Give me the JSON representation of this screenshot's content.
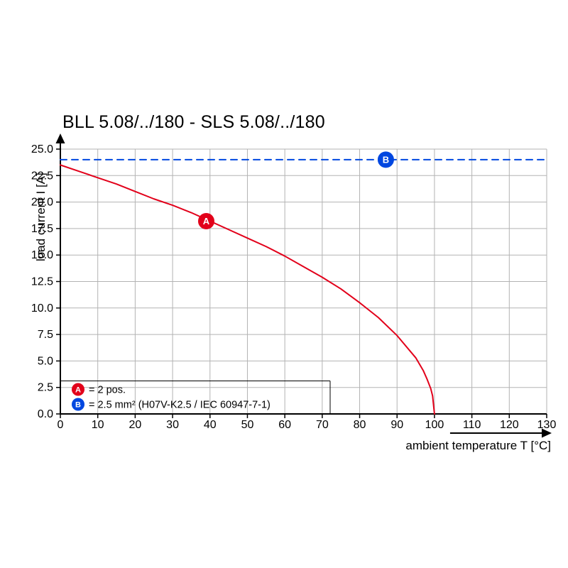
{
  "chart_data": {
    "type": "line",
    "title": "BLL 5.08/../180 - SLS 5.08/../180",
    "xlabel": "ambient temperature T [°C]",
    "ylabel": "load current I [A]",
    "xlim": [
      0,
      130
    ],
    "ylim": [
      0,
      25
    ],
    "grid": true,
    "x_ticks": [
      0,
      10,
      20,
      30,
      40,
      50,
      60,
      70,
      80,
      90,
      100,
      110,
      120,
      130
    ],
    "x_tick_labels": [
      "0",
      "10",
      "20",
      "30",
      "40",
      "50",
      "60",
      "70",
      "80",
      "90",
      "100",
      "110",
      "120",
      "130"
    ],
    "y_ticks": [
      0,
      2.5,
      5,
      7.5,
      10,
      12.5,
      15,
      17.5,
      20,
      22.5,
      25
    ],
    "y_tick_labels": [
      "0.0",
      "2.5",
      "5.0",
      "7.5",
      "10.0",
      "12.5",
      "15.0",
      "17.5",
      "20.0",
      "22.5",
      "25.0"
    ],
    "series": [
      {
        "name": "A",
        "color": "#e2001a",
        "style": "solid",
        "points": [
          [
            0,
            23.5
          ],
          [
            5,
            22.9
          ],
          [
            10,
            22.3
          ],
          [
            15,
            21.7
          ],
          [
            20,
            21.0
          ],
          [
            25,
            20.3
          ],
          [
            30,
            19.7
          ],
          [
            35,
            19.0
          ],
          [
            40,
            18.2
          ],
          [
            45,
            17.4
          ],
          [
            50,
            16.6
          ],
          [
            55,
            15.8
          ],
          [
            60,
            14.9
          ],
          [
            65,
            13.9
          ],
          [
            70,
            12.9
          ],
          [
            75,
            11.8
          ],
          [
            80,
            10.5
          ],
          [
            85,
            9.1
          ],
          [
            90,
            7.4
          ],
          [
            95,
            5.3
          ],
          [
            97,
            4.1
          ],
          [
            98,
            3.3
          ],
          [
            99,
            2.4
          ],
          [
            99.5,
            1.7
          ],
          [
            100,
            0
          ]
        ],
        "marker": {
          "x": 39,
          "y": 18.2,
          "label": "A"
        }
      },
      {
        "name": "B",
        "color": "#0047e0",
        "style": "dashed",
        "points": [
          [
            0,
            24
          ],
          [
            130,
            24
          ]
        ],
        "marker": {
          "x": 87,
          "y": 24,
          "label": "B"
        }
      }
    ],
    "legend_position": "bottom-left",
    "legend": [
      {
        "marker": "A",
        "color": "#e2001a",
        "text": "= 2 pos."
      },
      {
        "marker": "B",
        "color": "#0047e0",
        "text": "= 2.5 mm² (H07V-K2.5 / IEC 60947-7-1)"
      }
    ]
  }
}
